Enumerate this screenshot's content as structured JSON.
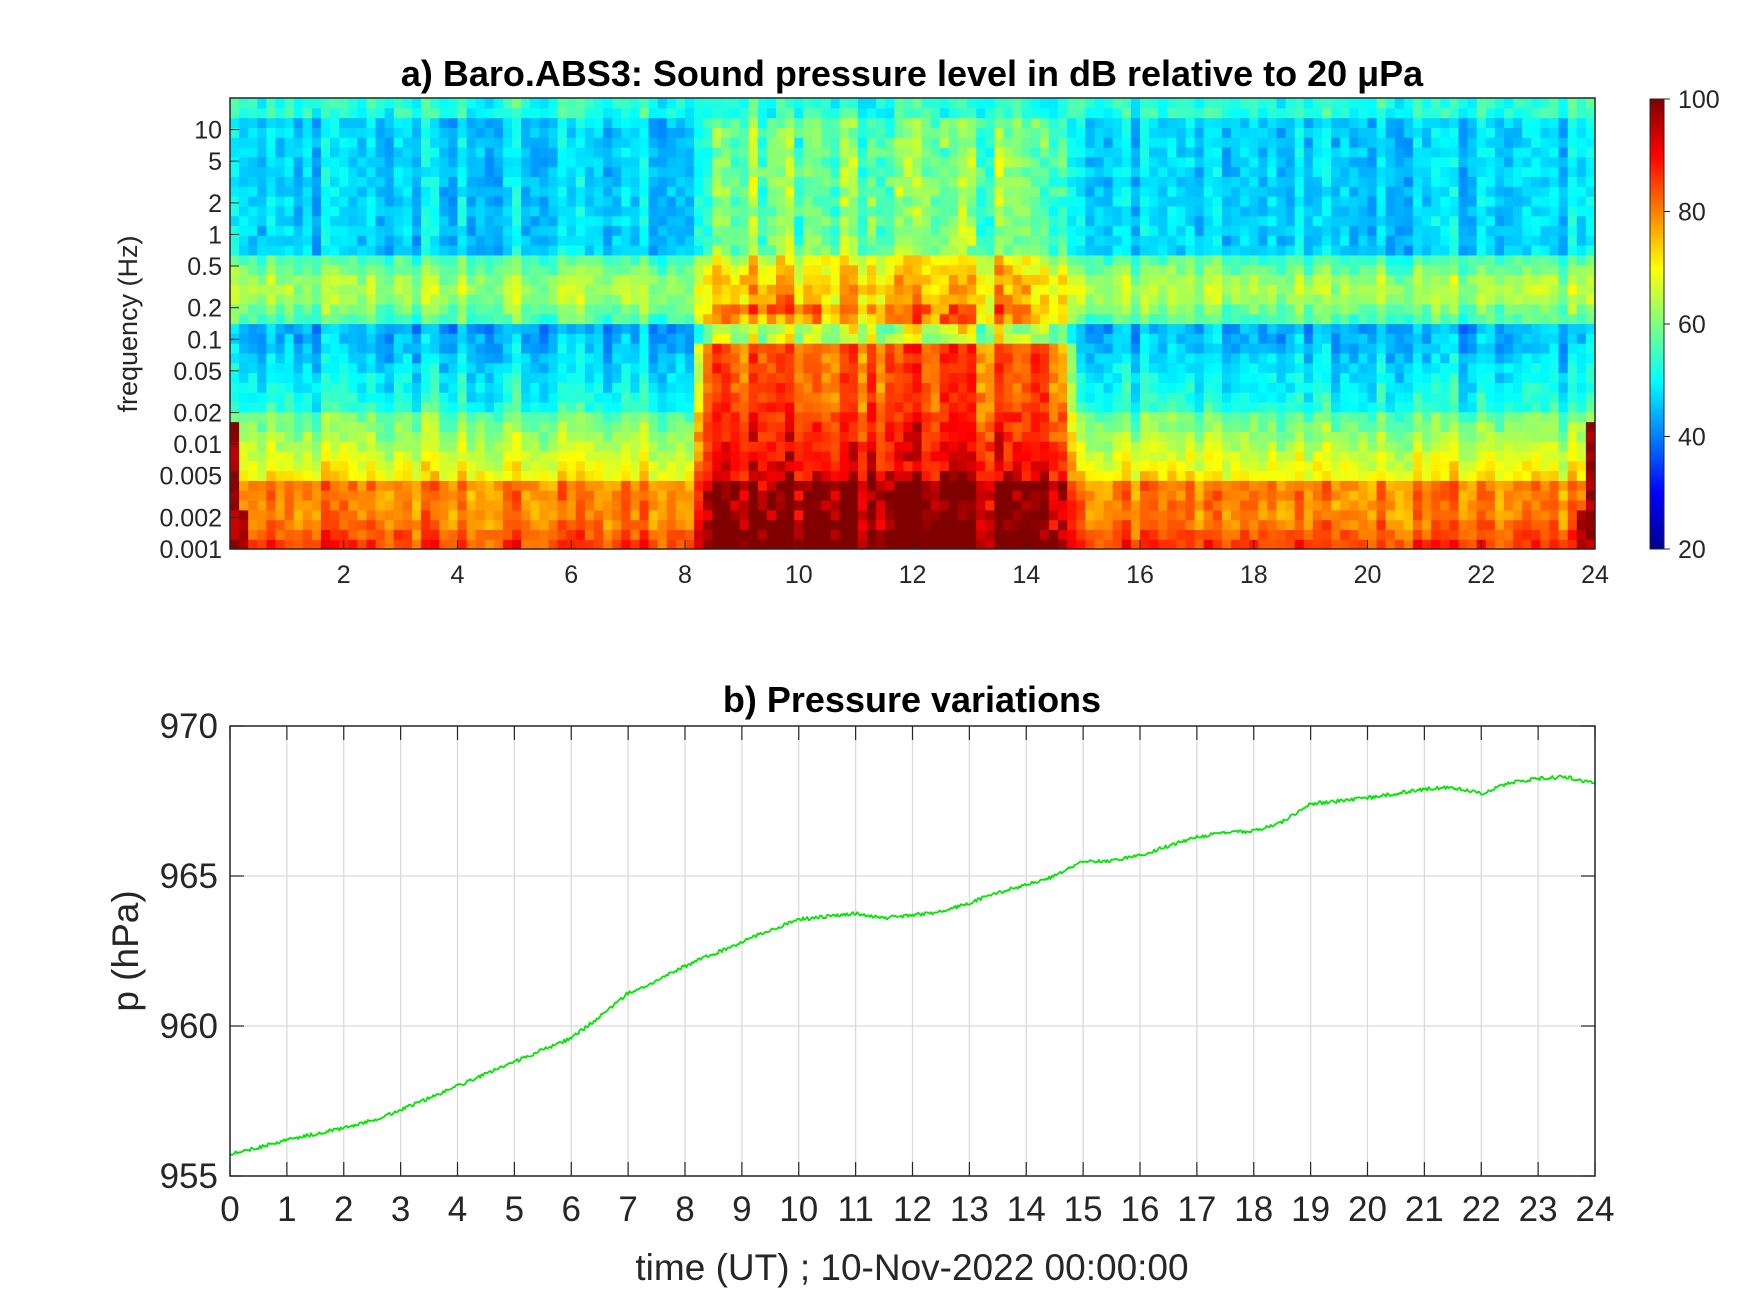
{
  "figure": {
    "panel_a": {
      "title": "a) Baro.ABS3: Sound pressure level in dB relative to 20 μPa",
      "ylabel": "frequency (Hz)",
      "colorbar": {
        "ticks": [
          "20",
          "40",
          "60",
          "80",
          "100"
        ],
        "range": [
          20,
          100
        ],
        "colormap": "jet"
      }
    },
    "panel_b": {
      "title": "b) Pressure variations",
      "xlabel": "time (UT) ; 10-Nov-2022 00:00:00",
      "ylabel": "p (hPa)",
      "line_color": "#00e600"
    }
  },
  "chart_data": [
    {
      "type": "heatmap",
      "title": "a) Baro.ABS3: Sound pressure level in dB relative to 20 μPa",
      "xlabel": "",
      "ylabel": "frequency (Hz)",
      "x_range": [
        0,
        24
      ],
      "y_scale": "log",
      "y_range": [
        0.001,
        20
      ],
      "x_ticks": [
        "2",
        "4",
        "6",
        "8",
        "10",
        "12",
        "14",
        "16",
        "18",
        "20",
        "22",
        "24"
      ],
      "y_ticks": [
        "0.001",
        "0.002",
        "0.005",
        "0.01",
        "0.02",
        "0.05",
        "0.1",
        "0.2",
        "0.5",
        "1",
        "2",
        "5",
        "10"
      ],
      "z_range": [
        20,
        100
      ],
      "colorbar_ticks": [
        "20",
        "40",
        "60",
        "80",
        "100"
      ],
      "colormap": "jet",
      "grid": false,
      "description_of_levels": {
        "high_frequency_band_above_0_15Hz_dB": 50,
        "low_frequency_below_0_005Hz_dB": 85,
        "active_period_hours": [
          8.5,
          14.5
        ],
        "active_period_dB": 88
      }
    },
    {
      "type": "line",
      "title": "b) Pressure variations",
      "xlabel": "time (UT) ; 10-Nov-2022 00:00:00",
      "ylabel": "p (hPa)",
      "xlim": [
        0,
        24
      ],
      "ylim": [
        955,
        970
      ],
      "x_ticks": [
        "0",
        "1",
        "2",
        "3",
        "4",
        "5",
        "6",
        "7",
        "8",
        "9",
        "10",
        "11",
        "12",
        "13",
        "14",
        "15",
        "16",
        "17",
        "18",
        "19",
        "20",
        "21",
        "22",
        "23",
        "24"
      ],
      "y_ticks": [
        "955",
        "960",
        "965",
        "970"
      ],
      "grid": true,
      "series": [
        {
          "color": "#00e600",
          "x": [
            0,
            0.5,
            1,
            1.5,
            2,
            2.5,
            3,
            3.5,
            4,
            4.5,
            5,
            5.5,
            6,
            6.5,
            7,
            7.5,
            8,
            8.5,
            9,
            9.5,
            10,
            10.5,
            11,
            11.5,
            12,
            12.5,
            13,
            13.5,
            14,
            14.5,
            15,
            15.5,
            16,
            16.5,
            17,
            17.5,
            18,
            18.5,
            19,
            19.5,
            20,
            20.5,
            21,
            21.5,
            22,
            22.5,
            23,
            23.5,
            24
          ],
          "y": [
            955.75,
            955.95,
            956.2,
            956.4,
            956.6,
            956.85,
            957.2,
            957.6,
            958.0,
            958.4,
            958.8,
            959.2,
            959.6,
            960.3,
            961.1,
            961.5,
            962.0,
            962.4,
            962.8,
            963.2,
            963.55,
            963.65,
            963.75,
            963.6,
            963.7,
            963.8,
            964.1,
            964.45,
            964.7,
            965.0,
            965.5,
            965.5,
            965.7,
            966.0,
            966.3,
            966.45,
            966.5,
            966.8,
            967.4,
            967.5,
            967.6,
            967.75,
            967.9,
            967.95,
            967.75,
            968.1,
            968.25,
            968.3,
            968.1
          ]
        }
      ]
    }
  ]
}
